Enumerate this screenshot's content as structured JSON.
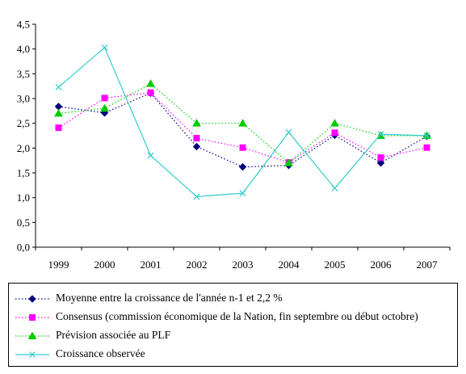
{
  "chart_data": {
    "type": "line",
    "categories": [
      "1999",
      "2000",
      "2001",
      "2002",
      "2003",
      "2004",
      "2005",
      "2006",
      "2007"
    ],
    "ylim": [
      0,
      4.5
    ],
    "yticks": [
      "0,0",
      "0,5",
      "1,0",
      "1,5",
      "2,0",
      "2,5",
      "3,0",
      "3,5",
      "4,0",
      "4,5"
    ],
    "grid": false,
    "legend_position": "bottom",
    "series": [
      {
        "name": "Moyenne entre la croissance de l'année n-1 et 2,2 %",
        "values": [
          2.84,
          2.71,
          3.11,
          2.03,
          1.62,
          1.65,
          2.26,
          1.7,
          2.24
        ],
        "color": "#000080",
        "marker": "diamond",
        "dash": "dotted"
      },
      {
        "name": "Consensus (commission économique de la Nation, fin septembre ou début octobre)",
        "values": [
          2.41,
          3.01,
          3.12,
          2.2,
          2.01,
          1.71,
          2.31,
          1.81,
          2.01
        ],
        "color": "#ff00ff",
        "marker": "square",
        "dash": "dotted"
      },
      {
        "name": "Prévision associée au PLF",
        "values": [
          2.7,
          2.8,
          3.3,
          2.5,
          2.5,
          1.7,
          2.5,
          2.25,
          2.25
        ],
        "color": "#00cc00",
        "marker": "triangle",
        "dash": "dotted"
      },
      {
        "name": "Croissance observée",
        "values": [
          3.23,
          4.03,
          1.85,
          1.02,
          1.09,
          2.32,
          1.19,
          2.28,
          2.25
        ],
        "color": "#33cccc",
        "marker": "x",
        "dash": "solid"
      }
    ]
  }
}
